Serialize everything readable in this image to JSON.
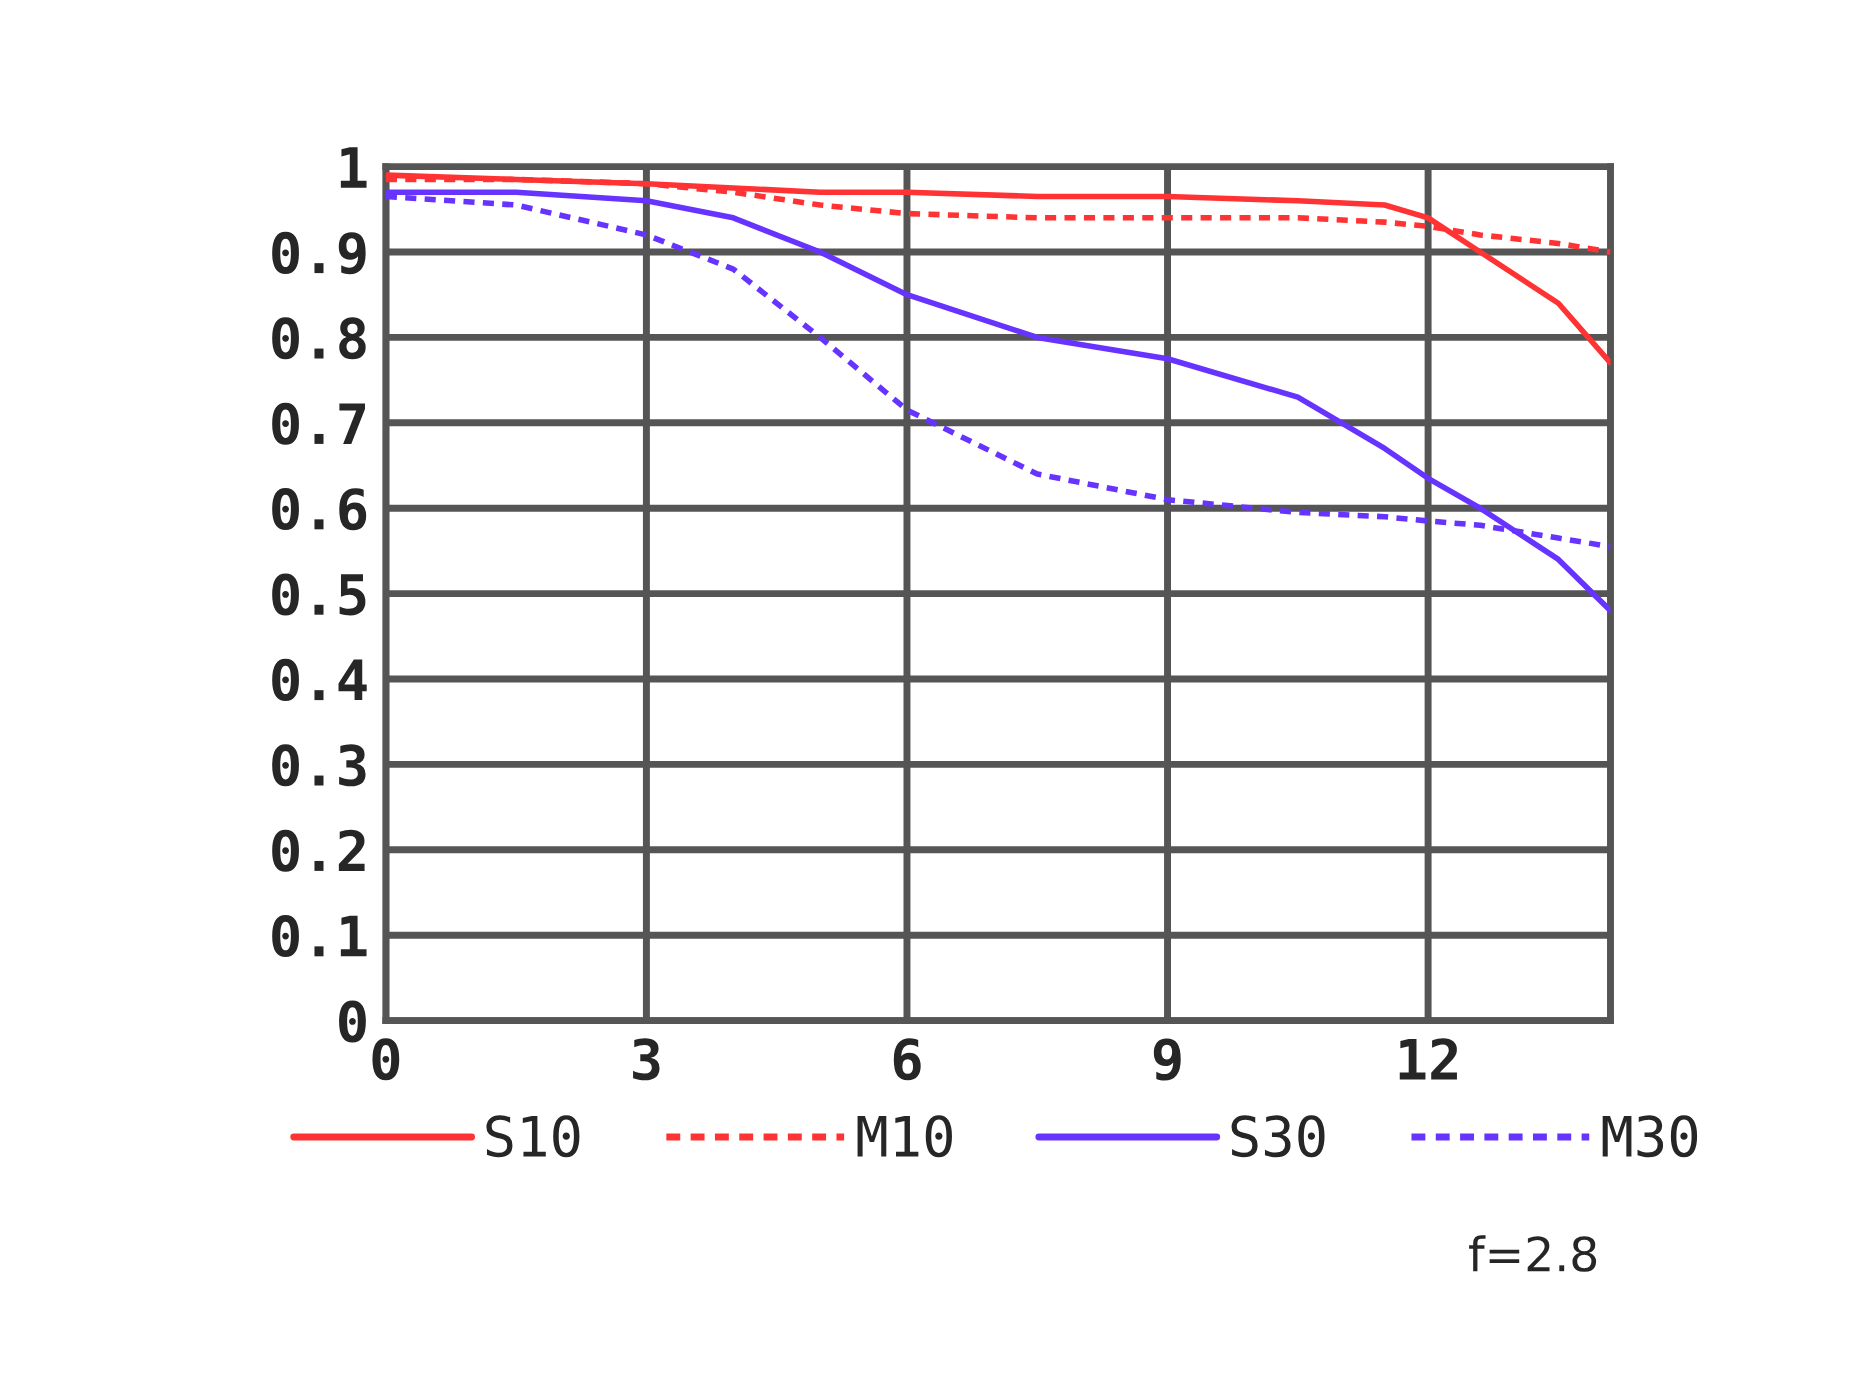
{
  "chart_data": {
    "type": "line",
    "x": [
      0,
      1.5,
      3,
      4,
      5,
      6,
      7.5,
      9,
      10.5,
      11.5,
      12,
      12.6,
      13.5,
      14.1
    ],
    "series": [
      {
        "name": "S10",
        "color": "#ff3333",
        "line_style": "solid",
        "values": [
          0.99,
          0.985,
          0.98,
          0.975,
          0.97,
          0.97,
          0.965,
          0.965,
          0.96,
          0.955,
          0.94,
          0.9,
          0.84,
          0.77
        ]
      },
      {
        "name": "M10",
        "color": "#ff3333",
        "line_style": "dashed",
        "values": [
          0.985,
          0.985,
          0.98,
          0.97,
          0.955,
          0.945,
          0.94,
          0.94,
          0.94,
          0.935,
          0.93,
          0.92,
          0.91,
          0.9
        ]
      },
      {
        "name": "S30",
        "color": "#6633ff",
        "line_style": "solid",
        "values": [
          0.97,
          0.97,
          0.96,
          0.94,
          0.9,
          0.85,
          0.8,
          0.775,
          0.73,
          0.67,
          0.635,
          0.6,
          0.54,
          0.48
        ]
      },
      {
        "name": "M30",
        "color": "#6633ff",
        "line_style": "dashed",
        "values": [
          0.965,
          0.955,
          0.92,
          0.88,
          0.8,
          0.715,
          0.64,
          0.61,
          0.595,
          0.59,
          0.585,
          0.58,
          0.565,
          0.555
        ]
      }
    ],
    "xlim": [
      0,
      14.1
    ],
    "xticks": [
      0,
      3,
      6,
      9,
      12
    ],
    "ylim": [
      0,
      1
    ],
    "yticks": [
      0,
      0.1,
      0.2,
      0.3,
      0.4,
      0.5,
      0.6,
      0.7,
      0.8,
      0.9,
      1
    ],
    "grid": true,
    "legend": "bottom",
    "marker": "none",
    "annotations": [
      "f=2.8"
    ]
  }
}
